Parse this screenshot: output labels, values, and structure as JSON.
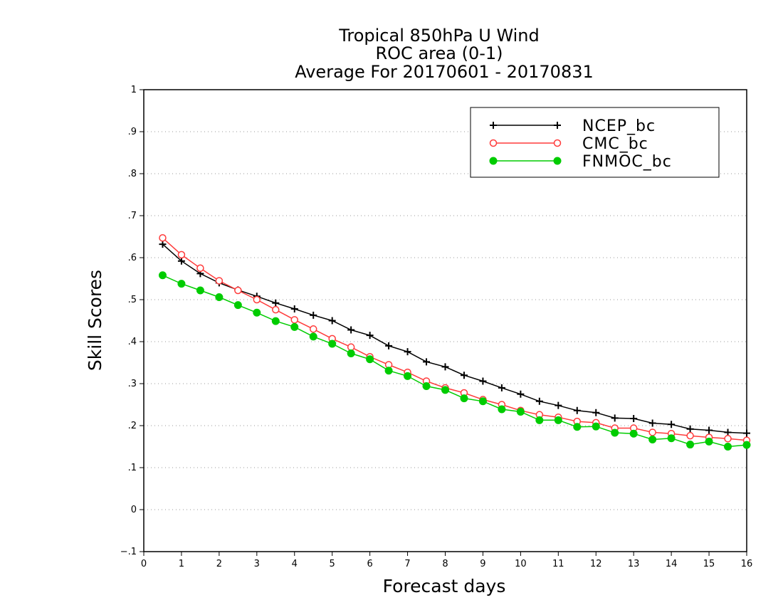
{
  "chart_data": {
    "type": "line",
    "title_lines": [
      "Tropical 850hPa U Wind",
      "ROC area (0-1)",
      "Average For 20170601 - 20170831"
    ],
    "xlabel": "Forecast days",
    "ylabel": "Skill Scores",
    "xlim": [
      0,
      16
    ],
    "ylim": [
      -0.1,
      1
    ],
    "x_ticks": [
      0,
      1,
      2,
      3,
      4,
      5,
      6,
      7,
      8,
      9,
      10,
      11,
      12,
      13,
      14,
      15,
      16
    ],
    "y_ticks": [
      -0.1,
      0,
      0.1,
      0.2,
      0.3,
      0.4,
      0.5,
      0.6,
      0.7,
      0.8,
      0.9,
      1
    ],
    "grid": "horizontal dotted",
    "legend_position": "top-right",
    "x": [
      0.5,
      1,
      1.5,
      2,
      2.5,
      3,
      3.5,
      4,
      4.5,
      5,
      5.5,
      6,
      6.5,
      7,
      7.5,
      8,
      8.5,
      9,
      9.5,
      10,
      10.5,
      11,
      11.5,
      12,
      12.5,
      13,
      13.5,
      14,
      14.5,
      15,
      15.5,
      16
    ],
    "series": [
      {
        "name": "NCEP_bc",
        "color": "#000000",
        "marker": "plus",
        "values": [
          0.632,
          0.592,
          0.562,
          0.54,
          0.523,
          0.508,
          0.492,
          0.478,
          0.463,
          0.45,
          0.428,
          0.415,
          0.39,
          0.376,
          0.352,
          0.34,
          0.32,
          0.306,
          0.29,
          0.275,
          0.258,
          0.248,
          0.236,
          0.231,
          0.218,
          0.217,
          0.206,
          0.203,
          0.192,
          0.189,
          0.184,
          0.182
        ]
      },
      {
        "name": "CMC_bc",
        "color": "#ff3b3b",
        "marker": "open-circle",
        "values": [
          0.647,
          0.607,
          0.575,
          0.545,
          0.522,
          0.5,
          0.476,
          0.452,
          0.43,
          0.407,
          0.387,
          0.364,
          0.345,
          0.327,
          0.306,
          0.29,
          0.278,
          0.262,
          0.25,
          0.236,
          0.226,
          0.22,
          0.21,
          0.207,
          0.194,
          0.194,
          0.184,
          0.181,
          0.176,
          0.172,
          0.169,
          0.165
        ]
      },
      {
        "name": "FNMOC_bc",
        "color": "#00cc00",
        "marker": "filled-circle",
        "values": [
          0.558,
          0.538,
          0.522,
          0.506,
          0.487,
          0.469,
          0.449,
          0.435,
          0.412,
          0.395,
          0.372,
          0.358,
          0.331,
          0.318,
          0.294,
          0.285,
          0.265,
          0.258,
          0.239,
          0.233,
          0.213,
          0.213,
          0.197,
          0.198,
          0.183,
          0.181,
          0.167,
          0.17,
          0.155,
          0.162,
          0.15,
          0.154
        ]
      }
    ]
  }
}
